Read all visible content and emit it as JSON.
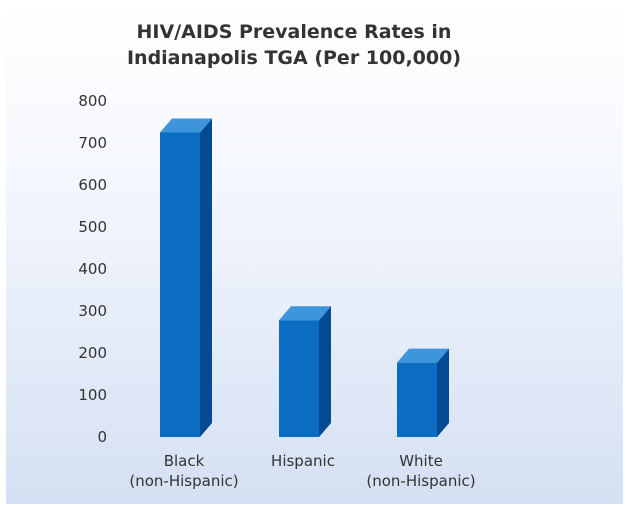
{
  "chart_data": {
    "type": "bar",
    "title_lines": [
      "HIV/AIDS Prevalence Rates in",
      "Indianapolis TGA (Per 100,000)"
    ],
    "categories": [
      [
        "Black",
        "(non-Hispanic)"
      ],
      [
        "Hispanic"
      ],
      [
        "White",
        "(non-Hispanic)"
      ]
    ],
    "values": [
      725,
      278,
      177
    ],
    "ylim": [
      0,
      800
    ],
    "yticks": [
      "0",
      "100",
      "200",
      "300",
      "400",
      "500",
      "600",
      "700",
      "800"
    ],
    "grid": false,
    "legend": "none",
    "colors": {
      "front": "#0a6dc2",
      "top": "#3f95dc",
      "side": "#034a92"
    }
  }
}
